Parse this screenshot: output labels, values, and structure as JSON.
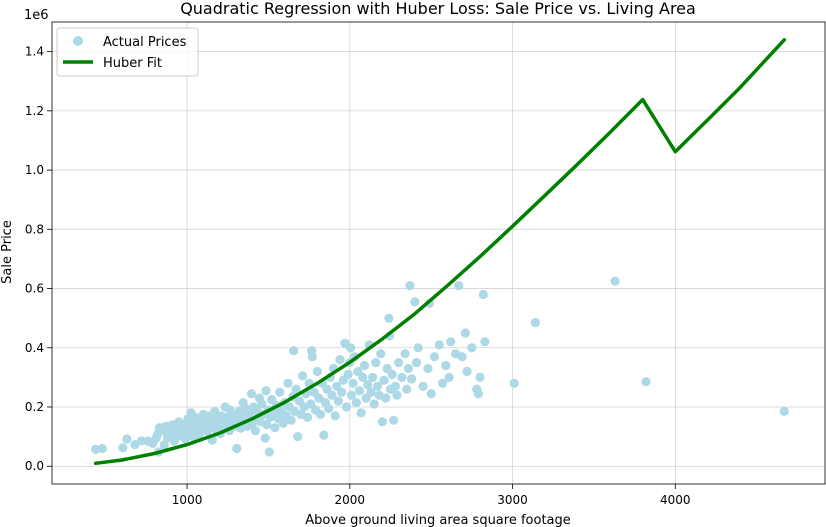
{
  "chart_data": {
    "type": "scatter",
    "title": "Quadratic Regression with Huber Loss: Sale Price vs. Living Area",
    "xlabel": "Above ground living area square footage",
    "ylabel": "Sale Price",
    "y_offset_label": "1e6",
    "xlim": [
      170,
      4920
    ],
    "ylim": [
      -60000,
      1500000
    ],
    "x_ticks": [
      1000,
      2000,
      3000,
      4000
    ],
    "y_ticks": [
      0.0,
      0.2,
      0.4,
      0.6,
      0.8,
      1.0,
      1.2,
      1.4
    ],
    "y_tick_multiplier": 1000000,
    "grid": true,
    "legend_position": "top-left",
    "colors": {
      "scatter": "#add8e6",
      "fit": "#008000",
      "grid": "#d3d3d3"
    },
    "series": [
      {
        "name": "Actual Prices",
        "kind": "scatter",
        "points": [
          [
            438,
            57000
          ],
          [
            480,
            60000
          ],
          [
            605,
            62000
          ],
          [
            630,
            92000
          ],
          [
            680,
            73000
          ],
          [
            720,
            86000
          ],
          [
            760,
            85000
          ],
          [
            790,
            77000
          ],
          [
            810,
            95000
          ],
          [
            820,
            110000
          ],
          [
            825,
            48000
          ],
          [
            830,
            130000
          ],
          [
            850,
            120000
          ],
          [
            860,
            72000
          ],
          [
            870,
            135000
          ],
          [
            880,
            97000
          ],
          [
            890,
            128000
          ],
          [
            900,
            115000
          ],
          [
            910,
            140000
          ],
          [
            920,
            85000
          ],
          [
            930,
            118000
          ],
          [
            940,
            100000
          ],
          [
            950,
            150000
          ],
          [
            960,
            125000
          ],
          [
            970,
            105000
          ],
          [
            980,
            140000
          ],
          [
            990,
            92000
          ],
          [
            1000,
            128000
          ],
          [
            1005,
            160000
          ],
          [
            1010,
            110000
          ],
          [
            1020,
            135000
          ],
          [
            1025,
            180000
          ],
          [
            1030,
            120000
          ],
          [
            1040,
            150000
          ],
          [
            1045,
            96000
          ],
          [
            1050,
            165000
          ],
          [
            1060,
            130000
          ],
          [
            1070,
            140000
          ],
          [
            1075,
            108000
          ],
          [
            1080,
            155000
          ],
          [
            1090,
            120000
          ],
          [
            1100,
            175000
          ],
          [
            1105,
            135000
          ],
          [
            1110,
            145000
          ],
          [
            1120,
            160000
          ],
          [
            1125,
            118000
          ],
          [
            1130,
            128000
          ],
          [
            1140,
            170000
          ],
          [
            1150,
            140000
          ],
          [
            1155,
            88000
          ],
          [
            1160,
            150000
          ],
          [
            1170,
            185000
          ],
          [
            1175,
            125000
          ],
          [
            1180,
            138000
          ],
          [
            1190,
            160000
          ],
          [
            1200,
            145000
          ],
          [
            1205,
            110000
          ],
          [
            1210,
            170000
          ],
          [
            1220,
            130000
          ],
          [
            1230,
            155000
          ],
          [
            1235,
            200000
          ],
          [
            1240,
            140000
          ],
          [
            1250,
            165000
          ],
          [
            1260,
            120000
          ],
          [
            1265,
            190000
          ],
          [
            1270,
            150000
          ],
          [
            1280,
            175000
          ],
          [
            1290,
            135000
          ],
          [
            1300,
            160000
          ],
          [
            1305,
            60000
          ],
          [
            1310,
            145000
          ],
          [
            1320,
            185000
          ],
          [
            1330,
            128000
          ],
          [
            1340,
            170000
          ],
          [
            1345,
            215000
          ],
          [
            1350,
            150000
          ],
          [
            1360,
            195000
          ],
          [
            1370,
            135000
          ],
          [
            1380,
            178000
          ],
          [
            1390,
            160000
          ],
          [
            1395,
            245000
          ],
          [
            1400,
            145000
          ],
          [
            1410,
            200000
          ],
          [
            1420,
            120000
          ],
          [
            1430,
            185000
          ],
          [
            1440,
            165000
          ],
          [
            1445,
            230000
          ],
          [
            1450,
            150000
          ],
          [
            1460,
            210000
          ],
          [
            1470,
            175000
          ],
          [
            1480,
            95000
          ],
          [
            1485,
            255000
          ],
          [
            1490,
            140000
          ],
          [
            1500,
            190000
          ],
          [
            1505,
            48000
          ],
          [
            1510,
            165000
          ],
          [
            1520,
            225000
          ],
          [
            1530,
            180000
          ],
          [
            1540,
            130000
          ],
          [
            1550,
            205000
          ],
          [
            1560,
            160000
          ],
          [
            1570,
            250000
          ],
          [
            1580,
            185000
          ],
          [
            1590,
            145000
          ],
          [
            1600,
            215000
          ],
          [
            1610,
            170000
          ],
          [
            1620,
            280000
          ],
          [
            1630,
            200000
          ],
          [
            1640,
            155000
          ],
          [
            1650,
            235000
          ],
          [
            1655,
            390000
          ],
          [
            1660,
            185000
          ],
          [
            1670,
            260000
          ],
          [
            1680,
            100000
          ],
          [
            1690,
            220000
          ],
          [
            1700,
            175000
          ],
          [
            1710,
            305000
          ],
          [
            1720,
            200000
          ],
          [
            1730,
            245000
          ],
          [
            1740,
            165000
          ],
          [
            1750,
            280000
          ],
          [
            1760,
            210000
          ],
          [
            1765,
            390000
          ],
          [
            1770,
            370000
          ],
          [
            1780,
            250000
          ],
          [
            1790,
            190000
          ],
          [
            1800,
            320000
          ],
          [
            1810,
            230000
          ],
          [
            1820,
            175000
          ],
          [
            1830,
            280000
          ],
          [
            1840,
            105000
          ],
          [
            1850,
            215000
          ],
          [
            1860,
            260000
          ],
          [
            1870,
            195000
          ],
          [
            1880,
            300000
          ],
          [
            1890,
            240000
          ],
          [
            1900,
            330000
          ],
          [
            1910,
            170000
          ],
          [
            1920,
            270000
          ],
          [
            1930,
            220000
          ],
          [
            1940,
            360000
          ],
          [
            1950,
            250000
          ],
          [
            1960,
            290000
          ],
          [
            1970,
            415000
          ],
          [
            1980,
            200000
          ],
          [
            1990,
            310000
          ],
          [
            2000,
            350000
          ],
          [
            2005,
            400000
          ],
          [
            2010,
            240000
          ],
          [
            2020,
            280000
          ],
          [
            2030,
            370000
          ],
          [
            2040,
            215000
          ],
          [
            2050,
            320000
          ],
          [
            2060,
            255000
          ],
          [
            2070,
            180000
          ],
          [
            2080,
            300000
          ],
          [
            2090,
            340000
          ],
          [
            2100,
            230000
          ],
          [
            2110,
            275000
          ],
          [
            2120,
            410000
          ],
          [
            2130,
            250000
          ],
          [
            2140,
            300000
          ],
          [
            2150,
            210000
          ],
          [
            2160,
            350000
          ],
          [
            2170,
            270000
          ],
          [
            2180,
            240000
          ],
          [
            2190,
            380000
          ],
          [
            2200,
            150000
          ],
          [
            2210,
            290000
          ],
          [
            2220,
            230000
          ],
          [
            2230,
            330000
          ],
          [
            2240,
            500000
          ],
          [
            2245,
            440000
          ],
          [
            2250,
            260000
          ],
          [
            2260,
            310000
          ],
          [
            2270,
            155000
          ],
          [
            2280,
            270000
          ],
          [
            2290,
            240000
          ],
          [
            2300,
            350000
          ],
          [
            2320,
            300000
          ],
          [
            2340,
            380000
          ],
          [
            2350,
            260000
          ],
          [
            2360,
            330000
          ],
          [
            2370,
            610000
          ],
          [
            2380,
            295000
          ],
          [
            2400,
            555000
          ],
          [
            2410,
            350000
          ],
          [
            2420,
            400000
          ],
          [
            2450,
            270000
          ],
          [
            2480,
            330000
          ],
          [
            2490,
            550000
          ],
          [
            2500,
            245000
          ],
          [
            2520,
            370000
          ],
          [
            2550,
            410000
          ],
          [
            2570,
            280000
          ],
          [
            2590,
            340000
          ],
          [
            2610,
            300000
          ],
          [
            2620,
            420000
          ],
          [
            2650,
            380000
          ],
          [
            2670,
            610000
          ],
          [
            2690,
            370000
          ],
          [
            2710,
            450000
          ],
          [
            2720,
            320000
          ],
          [
            2750,
            400000
          ],
          [
            2780,
            260000
          ],
          [
            2790,
            245000
          ],
          [
            2800,
            300000
          ],
          [
            2820,
            580000
          ],
          [
            2830,
            420000
          ],
          [
            3010,
            280000
          ],
          [
            3140,
            485000
          ],
          [
            3630,
            625000
          ],
          [
            3820,
            285000
          ],
          [
            4670,
            185000
          ]
        ]
      },
      {
        "name": "Huber Fit",
        "kind": "line",
        "points": [
          [
            438,
            10000
          ],
          [
            600,
            21000
          ],
          [
            800,
            43000
          ],
          [
            1000,
            73000
          ],
          [
            1200,
            112000
          ],
          [
            1400,
            160000
          ],
          [
            1600,
            216000
          ],
          [
            1800,
            280000
          ],
          [
            2000,
            351000
          ],
          [
            2200,
            430000
          ],
          [
            2400,
            515000
          ],
          [
            2600,
            610000
          ],
          [
            2800,
            708000
          ],
          [
            3000,
            810000
          ],
          [
            3200,
            915000
          ],
          [
            3400,
            1020000
          ],
          [
            3600,
            1128000
          ],
          [
            3800,
            1238000
          ],
          [
            4000,
            1062000
          ],
          [
            4200,
            1170000
          ],
          [
            4400,
            1280000
          ],
          [
            4670,
            1440000
          ]
        ]
      }
    ]
  }
}
